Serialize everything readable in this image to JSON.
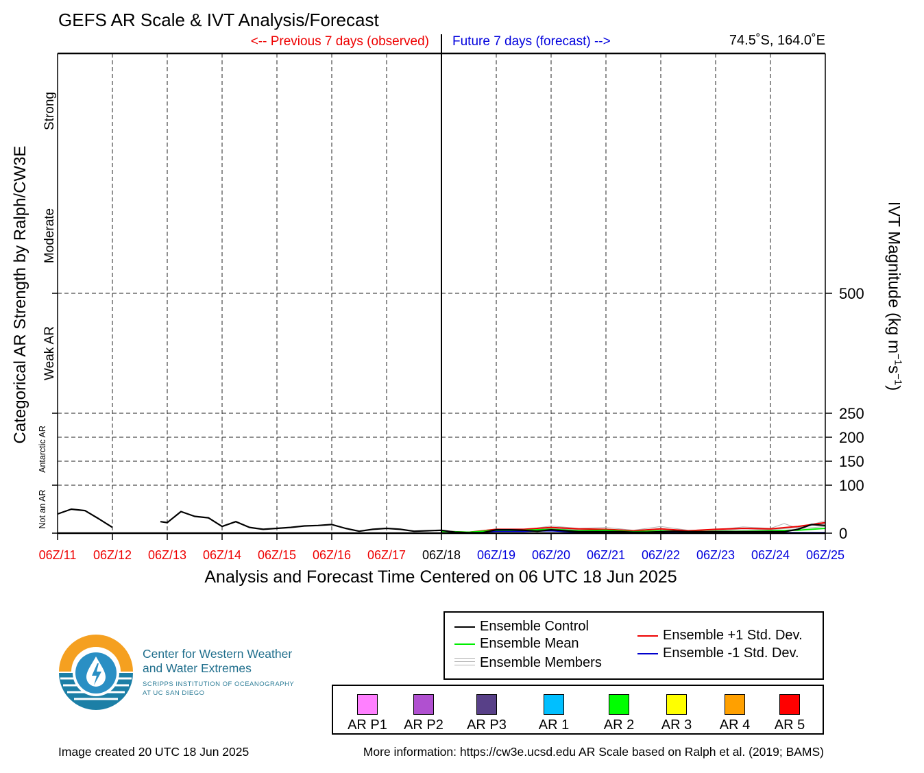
{
  "header": {
    "title": "GEFS AR Scale & IVT Analysis/Forecast",
    "previous_label": "<-- Previous 7 days (observed)",
    "future_label": "Future 7 days (forecast) -->",
    "location": "74.5˚S, 164.0˚E"
  },
  "colors": {
    "observed": "#ee0000",
    "forecast": "#0000dd",
    "control": "#000000",
    "mean": "#00ee00",
    "members": "#b0b0b0",
    "plus_std": "#ee0000",
    "minus_std": "#0000cc"
  },
  "chart_data": {
    "type": "line",
    "xlabel": "Analysis and Forecast Time Centered on 06 UTC 18 Jun 2025",
    "ylabel": "IVT Magnitude (kg m−1s−1)",
    "left_title": "Categorical AR Strength by Ralph/CW3E",
    "x_ticks": [
      "06Z/11",
      "06Z/12",
      "06Z/13",
      "06Z/14",
      "06Z/15",
      "06Z/16",
      "06Z/17",
      "06Z/18",
      "06Z/19",
      "06Z/20",
      "06Z/21",
      "06Z/22",
      "06Z/23",
      "06Z/24",
      "06Z/25"
    ],
    "x_tick_groups": [
      "observed",
      "observed",
      "observed",
      "observed",
      "observed",
      "observed",
      "observed",
      "center",
      "forecast",
      "forecast",
      "forecast",
      "forecast",
      "forecast",
      "forecast",
      "forecast"
    ],
    "x_range_days": [
      0,
      14
    ],
    "y_ticks": [
      0,
      100,
      150,
      200,
      250,
      500
    ],
    "y_range": [
      0,
      1000
    ],
    "categories": [
      {
        "label": "Not an AR",
        "y0": 0,
        "y1": 100,
        "size": "small"
      },
      {
        "label": "Antarctic AR",
        "y0": 100,
        "y1": 250,
        "size": "small"
      },
      {
        "label": "Weak AR",
        "y0": 250,
        "y1": 500,
        "size": "large"
      },
      {
        "label": "Moderate",
        "y0": 500,
        "y1": 750,
        "size": "large"
      },
      {
        "label": "Strong",
        "y0": 750,
        "y1": 1000,
        "size": "large"
      }
    ],
    "series": [
      {
        "name": "Ensemble Control",
        "segments": [
          {
            "x": [
              0,
              0.25,
              0.5,
              0.75,
              1.0
            ],
            "y": [
              40,
              50,
              47,
              30,
              12
            ]
          },
          {
            "x": [
              1.875,
              2.0,
              2.25,
              2.5,
              2.75,
              3.0,
              3.25,
              3.5,
              3.75,
              4.0,
              4.25,
              4.5,
              4.75,
              5.0,
              5.25,
              5.5,
              5.75,
              6.0,
              6.25,
              6.5,
              6.75,
              7.0,
              7.25,
              7.5,
              7.75,
              8.0,
              8.25,
              8.5,
              8.75,
              9.0,
              9.25,
              9.5,
              9.75,
              10.0,
              10.25,
              10.5,
              10.75,
              11.0,
              11.25,
              11.5,
              11.75,
              12.0,
              12.25,
              12.5,
              12.75,
              13.0,
              13.25,
              13.5,
              13.75,
              14.0
            ],
            "y": [
              24,
              22,
              45,
              35,
              32,
              14,
              24,
              12,
              8,
              10,
              12,
              15,
              16,
              18,
              10,
              4,
              8,
              10,
              8,
              4,
              5,
              6,
              2,
              1,
              1,
              7,
              7,
              6,
              4,
              7,
              5,
              3,
              3,
              3,
              3,
              2,
              2,
              3,
              4,
              3,
              3,
              3,
              3,
              3,
              3,
              3,
              3,
              8,
              18,
              16
            ]
          }
        ]
      },
      {
        "name": "Ensemble Mean",
        "segments": [
          {
            "x": [
              7.0,
              7.5,
              8.0,
              8.5,
              9.0,
              9.5,
              10.0,
              10.5,
              11.0,
              11.5,
              12.0,
              12.5,
              13.0,
              13.5,
              14.0
            ],
            "y": [
              4,
              2,
              6,
              6,
              8,
              5,
              6,
              3,
              5,
              3,
              4,
              4,
              5,
              6,
              10
            ]
          }
        ]
      },
      {
        "name": "Ensemble +1 Std. Dev.",
        "segments": [
          {
            "x": [
              7.0,
              7.5,
              8.0,
              8.5,
              9.0,
              9.5,
              10.0,
              10.5,
              11.0,
              11.5,
              12.0,
              12.5,
              13.0,
              13.5,
              14.0
            ],
            "y": [
              4,
              2,
              8,
              8,
              12,
              9,
              8,
              5,
              9,
              5,
              8,
              10,
              9,
              14,
              22
            ]
          }
        ]
      },
      {
        "name": "Ensemble -1 Std. Dev.",
        "segments": [
          {
            "x": [
              7.0,
              7.5,
              8.0,
              8.5,
              9.0,
              9.5,
              10.0,
              10.5,
              11.0,
              11.5,
              12.0,
              12.5,
              13.0,
              13.5,
              14.0
            ],
            "y": [
              4,
              1,
              4,
              4,
              5,
              2,
              3,
              1,
              2,
              1,
              1,
              0,
              1,
              1,
              1
            ]
          }
        ]
      },
      {
        "name": "Ensemble Members",
        "segments": [
          {
            "x": [
              7.0,
              7.5,
              8.0,
              8.5,
              9.0,
              9.5,
              10.0,
              10.5,
              11.0,
              11.5,
              12.0,
              12.5,
              13.0,
              13.25,
              13.5,
              14.0
            ],
            "y": [
              5,
              2,
              9,
              7,
              15,
              10,
              12,
              6,
              14,
              6,
              7,
              13,
              10,
              20,
              10,
              26
            ]
          },
          {
            "x": [
              7.0,
              7.5,
              8.0,
              8.5,
              9.0,
              9.5,
              10.0,
              10.5,
              11.0,
              11.5,
              12.0,
              12.5,
              13.0,
              13.5,
              14.0
            ],
            "y": [
              4,
              1,
              6,
              5,
              10,
              7,
              6,
              4,
              10,
              3,
              5,
              9,
              7,
              12,
              20
            ]
          },
          {
            "x": [
              7.0,
              7.5,
              8.0,
              8.5,
              9.0,
              9.5,
              10.0,
              10.5,
              11.0,
              11.5,
              12.0,
              12.5,
              13.0,
              13.5,
              14.0
            ],
            "y": [
              3,
              1,
              3,
              3,
              6,
              4,
              3,
              2,
              4,
              2,
              2,
              5,
              3,
              9,
              14
            ]
          }
        ]
      }
    ]
  },
  "legend": {
    "lines": [
      {
        "label": "Ensemble Control",
        "color": "#000000"
      },
      {
        "label": "Ensemble Mean",
        "color": "#00ee00"
      },
      {
        "label": "Ensemble Members",
        "color": "#b0b0b0"
      },
      {
        "label": "Ensemble +1 Std. Dev.",
        "color": "#ee0000"
      },
      {
        "label": "Ensemble -1 Std. Dev.",
        "color": "#0000cc"
      }
    ],
    "swatches": [
      {
        "label": "AR P1",
        "color": "#ff80ff"
      },
      {
        "label": "AR P2",
        "color": "#b050d0"
      },
      {
        "label": "AR P3",
        "color": "#584088"
      },
      {
        "label": "AR 1",
        "color": "#00bfff"
      },
      {
        "label": "AR 2",
        "color": "#00ff00"
      },
      {
        "label": "AR 3",
        "color": "#ffff00"
      },
      {
        "label": "AR 4",
        "color": "#ffa000"
      },
      {
        "label": "AR 5",
        "color": "#ff0000"
      }
    ]
  },
  "logo": {
    "line1": "Center for Western Weather",
    "line2": "and Water Extremes",
    "line3": "SCRIPPS INSTITUTION OF OCEANOGRAPHY",
    "line4": "AT UC SAN DIEGO"
  },
  "footer": {
    "created": "Image created 20 UTC 18 Jun 2025",
    "more_info": "More information: https://cw3e.ucsd.edu AR Scale based on Ralph et al. (2019; BAMS)"
  }
}
